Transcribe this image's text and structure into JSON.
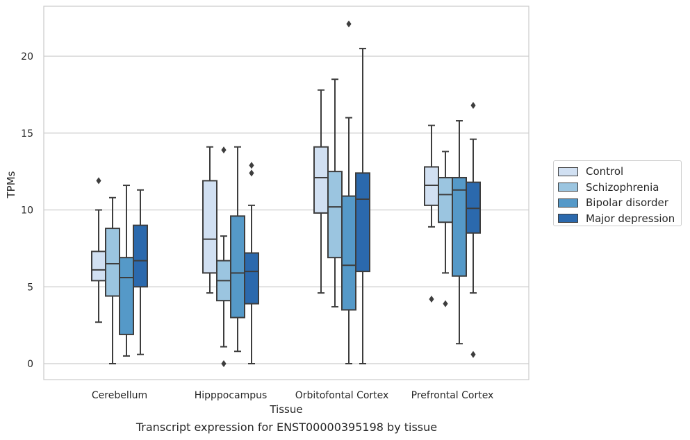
{
  "chart_data": {
    "type": "box",
    "title": "Transcript expression for ENST00000395198 by tissue",
    "xlabel": "Tissue",
    "ylabel": "TPMs",
    "ylim": [
      -1.07,
      23.3
    ],
    "yticks": [
      "0",
      "5",
      "10",
      "15",
      "20"
    ],
    "grid": true,
    "legend_position": "right",
    "categories": [
      "Cerebellum",
      "Hipppocampus",
      "Orbitofontal Cortex",
      "Prefrontal Cortex"
    ],
    "series": [
      {
        "name": "Control",
        "color": "#d1e0f2",
        "boxes": [
          {
            "whislo": 2.7,
            "q1": 5.4,
            "med": 6.1,
            "q3": 7.3,
            "whishi": 10.0,
            "fliers": [
              11.9
            ]
          },
          {
            "whislo": 4.6,
            "q1": 5.9,
            "med": 8.1,
            "q3": 11.9,
            "whishi": 14.1,
            "fliers": []
          },
          {
            "whislo": 4.6,
            "q1": 9.8,
            "med": 12.1,
            "q3": 14.1,
            "whishi": 17.8,
            "fliers": []
          },
          {
            "whislo": 8.9,
            "q1": 10.3,
            "med": 11.6,
            "q3": 12.8,
            "whishi": 15.5,
            "fliers": [
              4.2
            ]
          }
        ]
      },
      {
        "name": "Schizophrenia",
        "color": "#9bc5e0",
        "boxes": [
          {
            "whislo": 0.0,
            "q1": 4.4,
            "med": 6.5,
            "q3": 8.8,
            "whishi": 10.8,
            "fliers": []
          },
          {
            "whislo": 1.1,
            "q1": 4.1,
            "med": 5.4,
            "q3": 6.7,
            "whishi": 8.3,
            "fliers": [
              0.0,
              13.9
            ]
          },
          {
            "whislo": 3.7,
            "q1": 6.9,
            "med": 10.2,
            "q3": 12.5,
            "whishi": 18.5,
            "fliers": []
          },
          {
            "whislo": 5.9,
            "q1": 9.2,
            "med": 11.0,
            "q3": 12.1,
            "whishi": 13.8,
            "fliers": [
              3.9
            ]
          }
        ]
      },
      {
        "name": "Bipolar disorder",
        "color": "#5599c8",
        "boxes": [
          {
            "whislo": 0.5,
            "q1": 1.9,
            "med": 5.6,
            "q3": 6.9,
            "whishi": 11.6,
            "fliers": []
          },
          {
            "whislo": 0.8,
            "q1": 3.0,
            "med": 5.9,
            "q3": 9.6,
            "whishi": 14.1,
            "fliers": []
          },
          {
            "whislo": 0.0,
            "q1": 3.5,
            "med": 6.4,
            "q3": 10.9,
            "whishi": 16.0,
            "fliers": [
              22.1
            ]
          },
          {
            "whislo": 1.3,
            "q1": 5.7,
            "med": 11.3,
            "q3": 12.1,
            "whishi": 15.8,
            "fliers": []
          }
        ]
      },
      {
        "name": "Major depression",
        "color": "#2b69ad",
        "boxes": [
          {
            "whislo": 0.6,
            "q1": 5.0,
            "med": 6.7,
            "q3": 9.0,
            "whishi": 11.3,
            "fliers": []
          },
          {
            "whislo": 0.0,
            "q1": 3.9,
            "med": 6.0,
            "q3": 7.2,
            "whishi": 10.3,
            "fliers": [
              12.4,
              12.9
            ]
          },
          {
            "whislo": 0.0,
            "q1": 6.0,
            "med": 10.7,
            "q3": 12.4,
            "whishi": 20.5,
            "fliers": []
          },
          {
            "whislo": 4.6,
            "q1": 8.5,
            "med": 10.1,
            "q3": 11.8,
            "whishi": 14.6,
            "fliers": [
              0.6,
              16.8
            ]
          }
        ]
      }
    ]
  },
  "caption": "Transcript expression for ENST00000395198 by tissue"
}
